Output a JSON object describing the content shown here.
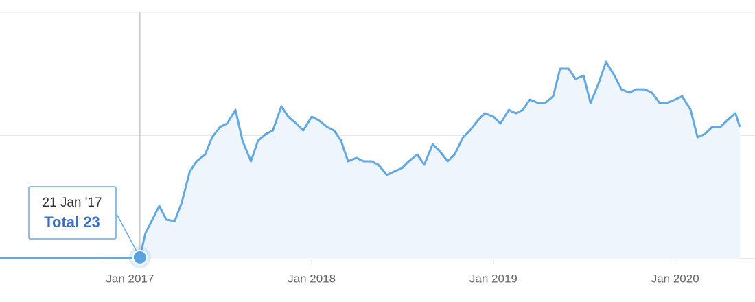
{
  "chart_data": {
    "type": "area",
    "series": [
      {
        "name": "Total",
        "color": "#62a8e2",
        "fill": "#eef5fc",
        "x": [
          "2016-04-15",
          "2016-07-01",
          "2016-10-01",
          "2017-01-01",
          "2017-01-21",
          "2017-02-01",
          "2017-03-01",
          "2017-03-15",
          "2017-04-01",
          "2017-04-15",
          "2017-05-01",
          "2017-05-15",
          "2017-06-01",
          "2017-06-15",
          "2017-07-01",
          "2017-07-15",
          "2017-08-01",
          "2017-08-15",
          "2017-09-01",
          "2017-09-15",
          "2017-10-01",
          "2017-10-15",
          "2017-11-01",
          "2017-11-15",
          "2017-12-01",
          "2017-12-15",
          "2018-01-01",
          "2018-01-15",
          "2018-02-01",
          "2018-02-15",
          "2018-03-01",
          "2018-03-15",
          "2018-04-01",
          "2018-04-15",
          "2018-05-01",
          "2018-05-15",
          "2018-06-01",
          "2018-06-15",
          "2018-07-01",
          "2018-07-15",
          "2018-08-01",
          "2018-08-15",
          "2018-09-01",
          "2018-09-15",
          "2018-10-01",
          "2018-10-15",
          "2018-11-01",
          "2018-11-15",
          "2018-12-01",
          "2018-12-15",
          "2019-01-01",
          "2019-01-15",
          "2019-02-01",
          "2019-02-15",
          "2019-03-01",
          "2019-03-15",
          "2019-04-01",
          "2019-04-15",
          "2019-05-01",
          "2019-05-15",
          "2019-06-01",
          "2019-06-15",
          "2019-07-01",
          "2019-07-15",
          "2019-08-01",
          "2019-08-15",
          "2019-09-01",
          "2019-09-15",
          "2019-10-01",
          "2019-10-15",
          "2019-11-01",
          "2019-11-15",
          "2019-12-01",
          "2019-12-15",
          "2020-01-01",
          "2020-01-15",
          "2020-02-01",
          "2020-02-15",
          "2020-03-01",
          "2020-03-15",
          "2020-04-01",
          "2020-04-15",
          "2020-05-01",
          "2020-05-10"
        ],
        "values": [
          10,
          10,
          10,
          15,
          23,
          412,
          858,
          635,
          613,
          913,
          1415,
          1582,
          1693,
          1972,
          2139,
          2195,
          2417,
          1916,
          1582,
          1916,
          2027,
          2083,
          2473,
          2306,
          2195,
          2083,
          2306,
          2250,
          2139,
          2083,
          1916,
          1582,
          1638,
          1582,
          1582,
          1526,
          1359,
          1415,
          1470,
          1582,
          1693,
          1526,
          1860,
          1749,
          1582,
          1693,
          1972,
          2083,
          2250,
          2362,
          2306,
          2195,
          2417,
          2362,
          2417,
          2584,
          2529,
          2529,
          2640,
          3086,
          3086,
          2919,
          2974,
          2529,
          2863,
          3197,
          2974,
          2751,
          2696,
          2751,
          2751,
          2696,
          2529,
          2529,
          2584,
          2640,
          2417,
          1972,
          2027,
          2139,
          2139,
          2250,
          2362,
          2139
        ]
      }
    ],
    "xlim": [
      "2016-04-15",
      "2020-05-10"
    ],
    "xticks": [
      {
        "value": "2017-01-01",
        "label": "Jan 2017"
      },
      {
        "value": "2018-01-01",
        "label": "Jan 2018"
      },
      {
        "value": "2019-01-01",
        "label": "Jan 2019"
      },
      {
        "value": "2020-01-01",
        "label": "Jan 2020"
      }
    ],
    "ylim": [
      0,
      4000
    ],
    "yticks": [
      0,
      2000,
      4000
    ],
    "grid": true,
    "tooltip": {
      "date": "21 Jan '17",
      "x": "2017-01-21",
      "value": 23
    }
  }
}
